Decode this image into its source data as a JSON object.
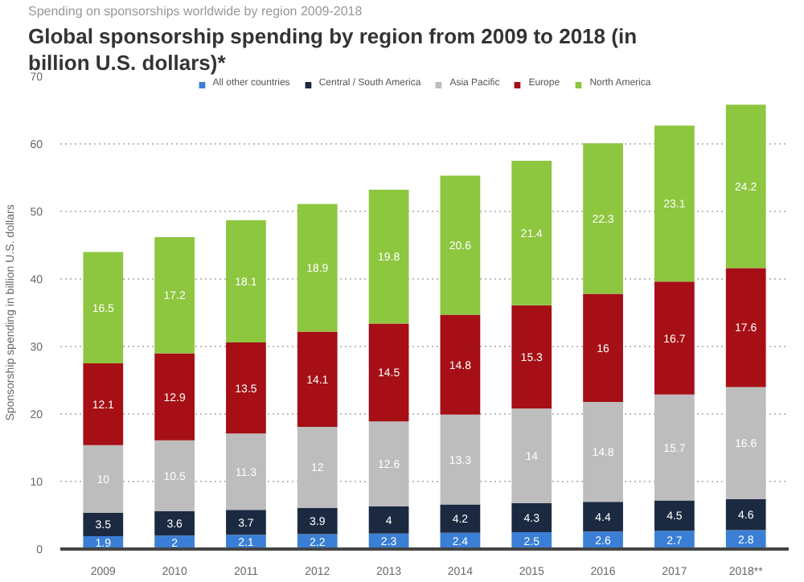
{
  "chart_data": {
    "type": "bar",
    "stacked": true,
    "subtitle": "Spending on sponsorships worldwide by region 2009-2018",
    "title": "Global sponsorship spending by region from 2009 to 2018 (in billion U.S. dollars)*",
    "ylabel": "Sponsorship spending in billion U.S. dollars",
    "categories": [
      "2009",
      "2010",
      "2011",
      "2012",
      "2013",
      "2014",
      "2015",
      "2016",
      "2017",
      "2018**"
    ],
    "series": [
      {
        "name": "All other countries",
        "color": "#3a7fd5",
        "values": [
          1.9,
          2,
          2.1,
          2.2,
          2.3,
          2.4,
          2.5,
          2.6,
          2.7,
          2.8
        ]
      },
      {
        "name": "Central / South America",
        "color": "#1b2a41",
        "values": [
          3.5,
          3.6,
          3.7,
          3.9,
          4,
          4.2,
          4.3,
          4.4,
          4.5,
          4.6
        ]
      },
      {
        "name": "Asia Pacific",
        "color": "#bdbdbd",
        "values": [
          10,
          10.5,
          11.3,
          12,
          12.6,
          13.3,
          14,
          14.8,
          15.7,
          16.6
        ]
      },
      {
        "name": "Europe",
        "color": "#a50f15",
        "values": [
          12.1,
          12.9,
          13.5,
          14.1,
          14.5,
          14.8,
          15.3,
          16,
          16.7,
          17.6
        ]
      },
      {
        "name": "North America",
        "color": "#8dc63f",
        "values": [
          16.5,
          17.2,
          18.1,
          18.9,
          19.8,
          20.6,
          21.4,
          22.3,
          23.1,
          24.2
        ]
      }
    ],
    "ylim": [
      0,
      70
    ],
    "yticks": [
      0,
      10,
      20,
      30,
      40,
      50,
      60,
      70
    ],
    "grid": "y",
    "legend": "top",
    "data_labels": true
  }
}
